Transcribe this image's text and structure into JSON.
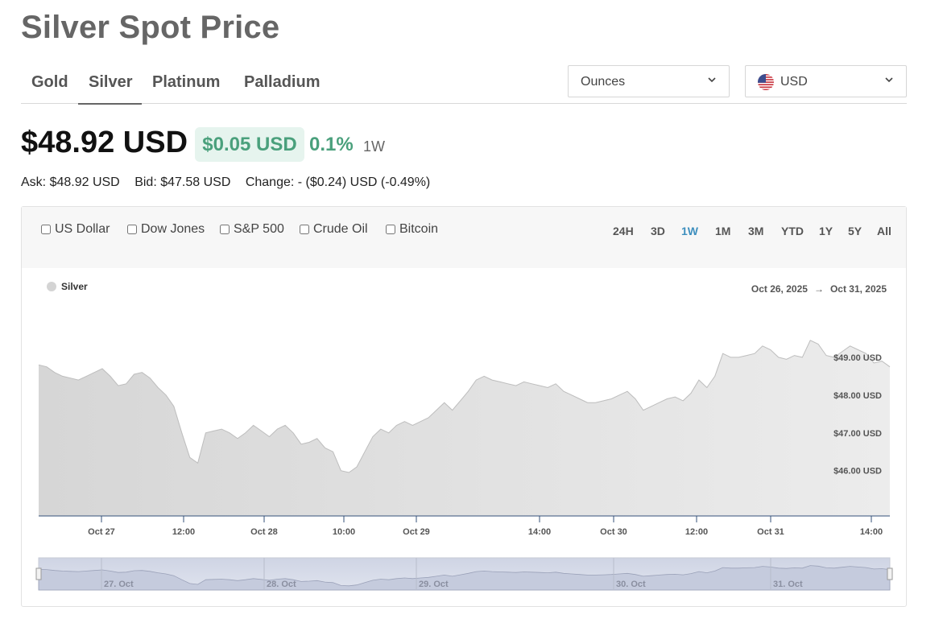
{
  "page": {
    "title": "Silver Spot Price"
  },
  "metal_tabs": [
    {
      "label": "Gold"
    },
    {
      "label": "Silver",
      "active": true
    },
    {
      "label": "Platinum"
    },
    {
      "label": "Palladium"
    }
  ],
  "unit_select": {
    "value": "Ounces",
    "icon": "chevron-down-icon"
  },
  "currency_select": {
    "value": "USD",
    "icon": "us-flag-icon"
  },
  "price": {
    "current": "$48.92 USD",
    "change": "$0.05 USD",
    "change_pct": "0.1%",
    "period": "1W",
    "change_color": "#4aa07c"
  },
  "quote": {
    "ask": "Ask: $48.92 USD",
    "bid": "Bid: $47.58 USD",
    "change": "Change: - ($0.24) USD (-0.49%)"
  },
  "compare_options": [
    {
      "label": "US Dollar",
      "checked": false
    },
    {
      "label": "Dow Jones",
      "checked": false
    },
    {
      "label": "S&P 500",
      "checked": false
    },
    {
      "label": "Crude Oil",
      "checked": false
    },
    {
      "label": "Bitcoin",
      "checked": false
    }
  ],
  "ranges": [
    {
      "label": "24H"
    },
    {
      "label": "3D"
    },
    {
      "label": "1W",
      "active": true
    },
    {
      "label": "1M"
    },
    {
      "label": "3M"
    },
    {
      "label": "YTD"
    },
    {
      "label": "1Y"
    },
    {
      "label": "5Y"
    },
    {
      "label": "All"
    }
  ],
  "accent_color": "#3e8fbe",
  "chart_data": {
    "type": "area",
    "series": [
      {
        "name": "Silver",
        "color": "#d4d4d4"
      }
    ],
    "date_from": "Oct 26, 2025",
    "date_to": "Oct 31, 2025",
    "date_arrow": "→",
    "x_labels": [
      "Oct 27",
      "12:00",
      "Oct 28",
      "10:00",
      "Oct 29",
      "14:00",
      "Oct 30",
      "12:00",
      "Oct 31",
      "14:00"
    ],
    "y_ticks": [
      "$46.00 USD",
      "$47.00 USD",
      "$48.00 USD",
      "$49.00 USD"
    ],
    "y_tick_values": [
      46,
      47,
      48,
      49
    ],
    "ylim": [
      44.8,
      50.0
    ],
    "values": [
      48.8,
      48.75,
      48.6,
      48.5,
      48.45,
      48.4,
      48.5,
      48.6,
      48.7,
      48.5,
      48.25,
      48.3,
      48.55,
      48.6,
      48.45,
      48.2,
      48.0,
      47.7,
      47.0,
      46.35,
      46.2,
      47.0,
      47.05,
      47.1,
      47.0,
      46.85,
      47.0,
      47.2,
      47.05,
      46.9,
      47.1,
      47.2,
      47.0,
      46.7,
      46.75,
      46.85,
      46.6,
      46.5,
      46.0,
      45.95,
      46.1,
      46.5,
      46.9,
      47.1,
      47.0,
      47.2,
      47.3,
      47.2,
      47.3,
      47.4,
      47.6,
      47.8,
      47.6,
      47.85,
      48.1,
      48.4,
      48.5,
      48.4,
      48.35,
      48.3,
      48.25,
      48.35,
      48.3,
      48.25,
      48.2,
      48.3,
      48.1,
      48.0,
      47.9,
      47.8,
      47.8,
      47.85,
      47.9,
      48.0,
      48.1,
      47.9,
      47.6,
      47.7,
      47.8,
      47.9,
      47.95,
      47.85,
      48.05,
      48.4,
      48.2,
      48.5,
      49.1,
      49.0,
      49.0,
      49.05,
      49.1,
      49.3,
      49.2,
      49.0,
      48.95,
      49.05,
      49.0,
      49.45,
      49.35,
      49.05,
      49.0,
      49.15,
      49.3,
      49.2,
      49.1,
      48.85,
      48.9,
      48.75
    ],
    "navigator": {
      "labels": [
        "27. Oct",
        "28. Oct",
        "29. Oct",
        "30. Oct",
        "31. Oct"
      ]
    }
  }
}
